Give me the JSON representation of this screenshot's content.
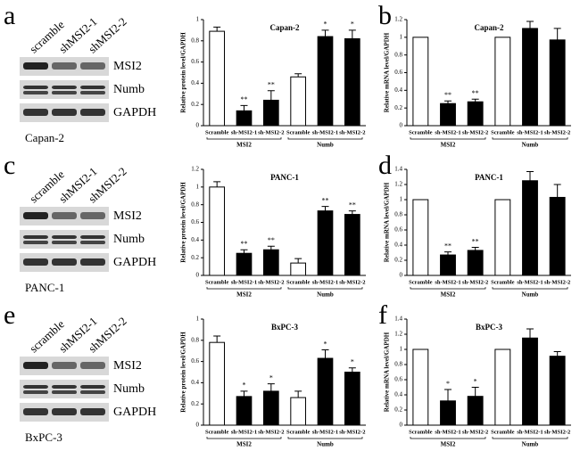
{
  "blots": [
    {
      "letter": "a",
      "lanes": [
        "scramble",
        "shMSI2-1",
        "shMSI2-2"
      ],
      "bands": [
        "MSI2",
        "Numb",
        "GAPDH"
      ],
      "cell_line": "Capan-2"
    },
    {
      "letter": "c",
      "lanes": [
        "scramble",
        "shMSI2-1",
        "shMSI2-2"
      ],
      "bands": [
        "MSI2",
        "Numb",
        "GAPDH"
      ],
      "cell_line": "PANC-1"
    },
    {
      "letter": "e",
      "lanes": [
        "scramble",
        "shMSI2-1",
        "shMSI2-2"
      ],
      "bands": [
        "MSI2",
        "Numb",
        "GAPDH"
      ],
      "cell_line": "BxPC-3"
    }
  ],
  "chart_data": [
    {
      "type": "bar",
      "title": "Capan-2",
      "y_label": "Relative protein level/GAPDH",
      "categories": [
        "Scramble",
        "sh-MSI2-1",
        "sh-MSI2-2",
        "Scramble",
        "sh-MSI2-1",
        "sh-MSI2-2"
      ],
      "groups": [
        "MSI2",
        "Numb"
      ],
      "values": [
        0.89,
        0.14,
        0.24,
        0.46,
        0.84,
        0.82
      ],
      "errors": [
        0.04,
        0.05,
        0.09,
        0.03,
        0.06,
        0.08
      ],
      "annotations": [
        null,
        "**",
        "**",
        null,
        "*",
        "*"
      ],
      "colors": [
        "#ffffff",
        "#000000",
        "#000000",
        "#ffffff",
        "#000000",
        "#000000"
      ],
      "ylim": [
        0,
        1
      ],
      "yticks": [
        0,
        0.2,
        0.4,
        0.6,
        0.8,
        1
      ]
    },
    {
      "type": "bar",
      "panel": "b",
      "title": "Capan-2",
      "y_label": "Relative mRNA level/GAPDH",
      "categories": [
        "Scramble",
        "sh-MSI2-1",
        "sh-MSI2-2",
        "Scramble",
        "sh-MSI2-1",
        "sh-MSI2-2"
      ],
      "groups": [
        "MSI2",
        "Numb"
      ],
      "values": [
        1,
        0.25,
        0.27,
        1,
        1.1,
        0.97
      ],
      "errors": [
        null,
        0.03,
        0.03,
        null,
        0.08,
        0.13
      ],
      "annotations": [
        null,
        "**",
        "**",
        null,
        null,
        null
      ],
      "colors": [
        "#ffffff",
        "#000000",
        "#000000",
        "#ffffff",
        "#000000",
        "#000000"
      ],
      "ylim": [
        0,
        1.2
      ],
      "yticks": [
        0,
        0.2,
        0.4,
        0.6,
        0.8,
        1,
        1.2
      ]
    },
    {
      "type": "bar",
      "title": "PANC-1",
      "y_label": "Relative protein level/GAPDH",
      "categories": [
        "Scramble",
        "sh-MSI2-1",
        "sh-MSI2-2",
        "Scramble",
        "sh-MSI2-1",
        "sh-MSI2-2"
      ],
      "groups": [
        "MSI2",
        "Numb"
      ],
      "values": [
        1.0,
        0.25,
        0.29,
        0.14,
        0.73,
        0.69
      ],
      "errors": [
        0.06,
        0.04,
        0.04,
        0.05,
        0.05,
        0.04
      ],
      "annotations": [
        null,
        "**",
        "**",
        null,
        "**",
        "**"
      ],
      "colors": [
        "#ffffff",
        "#000000",
        "#000000",
        "#ffffff",
        "#000000",
        "#000000"
      ],
      "ylim": [
        0,
        1.2
      ],
      "yticks": [
        0,
        0.2,
        0.4,
        0.6,
        0.8,
        1,
        1.2
      ]
    },
    {
      "type": "bar",
      "panel": "d",
      "title": "PANC-1",
      "y_label": "Relative mRNA level/GAPDH",
      "categories": [
        "Scramble",
        "sh-MSI2-1",
        "sh-MSI2-2",
        "Scramble",
        "sh-MSI2-1",
        "sh-MSI2-2"
      ],
      "groups": [
        "MSI2",
        "Numb"
      ],
      "values": [
        1,
        0.27,
        0.33,
        1,
        1.25,
        1.03
      ],
      "errors": [
        null,
        0.04,
        0.04,
        null,
        0.12,
        0.17
      ],
      "annotations": [
        null,
        "**",
        "**",
        null,
        null,
        null
      ],
      "colors": [
        "#ffffff",
        "#000000",
        "#000000",
        "#ffffff",
        "#000000",
        "#000000"
      ],
      "ylim": [
        0,
        1.4
      ],
      "yticks": [
        0,
        0.2,
        0.4,
        0.6,
        0.8,
        1,
        1.2,
        1.4
      ]
    },
    {
      "type": "bar",
      "title": "BxPC-3",
      "y_label": "Relative protein level/GAPDH",
      "categories": [
        "Scramble",
        "sh-MSI2-1",
        "sh-MSI2-2",
        "Scramble",
        "sh-MSI2-1",
        "sh-MSI2-2"
      ],
      "groups": [
        "MSI2",
        "Numb"
      ],
      "values": [
        0.78,
        0.27,
        0.32,
        0.26,
        0.63,
        0.5
      ],
      "errors": [
        0.06,
        0.05,
        0.07,
        0.06,
        0.08,
        0.04
      ],
      "annotations": [
        null,
        "*",
        "*",
        null,
        "*",
        "*"
      ],
      "colors": [
        "#ffffff",
        "#000000",
        "#000000",
        "#ffffff",
        "#000000",
        "#000000"
      ],
      "ylim": [
        0,
        1
      ],
      "yticks": [
        0,
        0.2,
        0.4,
        0.6,
        0.8,
        1
      ]
    },
    {
      "type": "bar",
      "panel": "f",
      "title": "BxPC-3",
      "y_label": "Relative mRNA level/GAPDH",
      "categories": [
        "Scramble",
        "sh-MSI2-1",
        "sh-MSI2-2",
        "Scramble",
        "sh-MSI2-1",
        "sh-MSI2-2"
      ],
      "groups": [
        "MSI2",
        "Numb"
      ],
      "values": [
        1,
        0.32,
        0.38,
        1,
        1.15,
        0.91
      ],
      "errors": [
        null,
        0.15,
        0.12,
        null,
        0.12,
        0.06
      ],
      "annotations": [
        null,
        "*",
        "*",
        null,
        null,
        null
      ],
      "colors": [
        "#ffffff",
        "#000000",
        "#000000",
        "#ffffff",
        "#000000",
        "#000000"
      ],
      "ylim": [
        0,
        1.4
      ],
      "yticks": [
        0,
        0.2,
        0.4,
        0.6,
        0.8,
        1,
        1.2,
        1.4
      ]
    }
  ]
}
